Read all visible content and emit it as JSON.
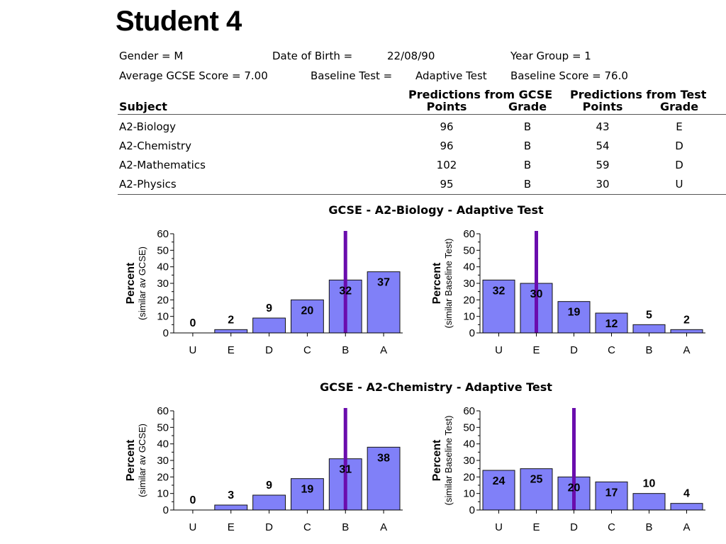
{
  "page_title": "Student 4",
  "info": {
    "gender": "Gender =  M",
    "dob_label": "Date of Birth =",
    "dob_value": "22/08/90",
    "year_group": "Year Group = 1",
    "avg_gcse": "Average GCSE Score =  7.00",
    "baseline_test": "Baseline Test =",
    "baseline_test_value": "Adaptive Test",
    "baseline_score": "Baseline Score = 76.0"
  },
  "table": {
    "subject_header": "Subject",
    "group_gcse": "Predictions from GCSE",
    "group_test": "Predictions from Test",
    "points_header": "Points",
    "grade_header": "Grade",
    "rows": [
      {
        "subject": "A2-Biology",
        "gcse_points": "96",
        "gcse_grade": "B",
        "test_points": "43",
        "test_grade": "E"
      },
      {
        "subject": "A2-Chemistry",
        "gcse_points": "96",
        "gcse_grade": "B",
        "test_points": "54",
        "test_grade": "D"
      },
      {
        "subject": "A2-Mathematics",
        "gcse_points": "102",
        "gcse_grade": "B",
        "test_points": "59",
        "test_grade": "D"
      },
      {
        "subject": "A2-Physics",
        "gcse_points": "95",
        "gcse_grade": "B",
        "test_points": "30",
        "test_grade": "U"
      }
    ]
  },
  "colors": {
    "bar": "#8080f8",
    "marker": "#6a0dad"
  },
  "chart_data": [
    {
      "type": "bar",
      "section_title": "GCSE - A2-Biology - Adaptive Test",
      "ylabel": "Percent",
      "ylabel2": "(similar av GCSE)",
      "categories": [
        "U",
        "E",
        "D",
        "C",
        "B",
        "A"
      ],
      "values": [
        0,
        2,
        9,
        20,
        32,
        37
      ],
      "ylim": [
        0,
        60
      ],
      "yticks": [
        0,
        10,
        20,
        30,
        40,
        50,
        60
      ],
      "marker_category": "B"
    },
    {
      "type": "bar",
      "section_title": "GCSE - A2-Biology - Adaptive Test",
      "ylabel": "Percent",
      "ylabel2": "(similar Baseline Test)",
      "categories": [
        "U",
        "E",
        "D",
        "C",
        "B",
        "A"
      ],
      "values": [
        32,
        30,
        19,
        12,
        5,
        2
      ],
      "ylim": [
        0,
        60
      ],
      "yticks": [
        0,
        10,
        20,
        30,
        40,
        50,
        60
      ],
      "marker_category": "E"
    },
    {
      "type": "bar",
      "section_title": "GCSE - A2-Chemistry - Adaptive Test",
      "ylabel": "Percent",
      "ylabel2": "(similar av GCSE)",
      "categories": [
        "U",
        "E",
        "D",
        "C",
        "B",
        "A"
      ],
      "values": [
        0,
        3,
        9,
        19,
        31,
        38
      ],
      "ylim": [
        0,
        60
      ],
      "yticks": [
        0,
        10,
        20,
        30,
        40,
        50,
        60
      ],
      "marker_category": "B"
    },
    {
      "type": "bar",
      "section_title": "GCSE - A2-Chemistry - Adaptive Test",
      "ylabel": "Percent",
      "ylabel2": "(similar Baseline Test)",
      "categories": [
        "U",
        "E",
        "D",
        "C",
        "B",
        "A"
      ],
      "values": [
        24,
        25,
        20,
        17,
        10,
        4
      ],
      "ylim": [
        0,
        60
      ],
      "yticks": [
        0,
        10,
        20,
        30,
        40,
        50,
        60
      ],
      "marker_category": "D"
    }
  ]
}
